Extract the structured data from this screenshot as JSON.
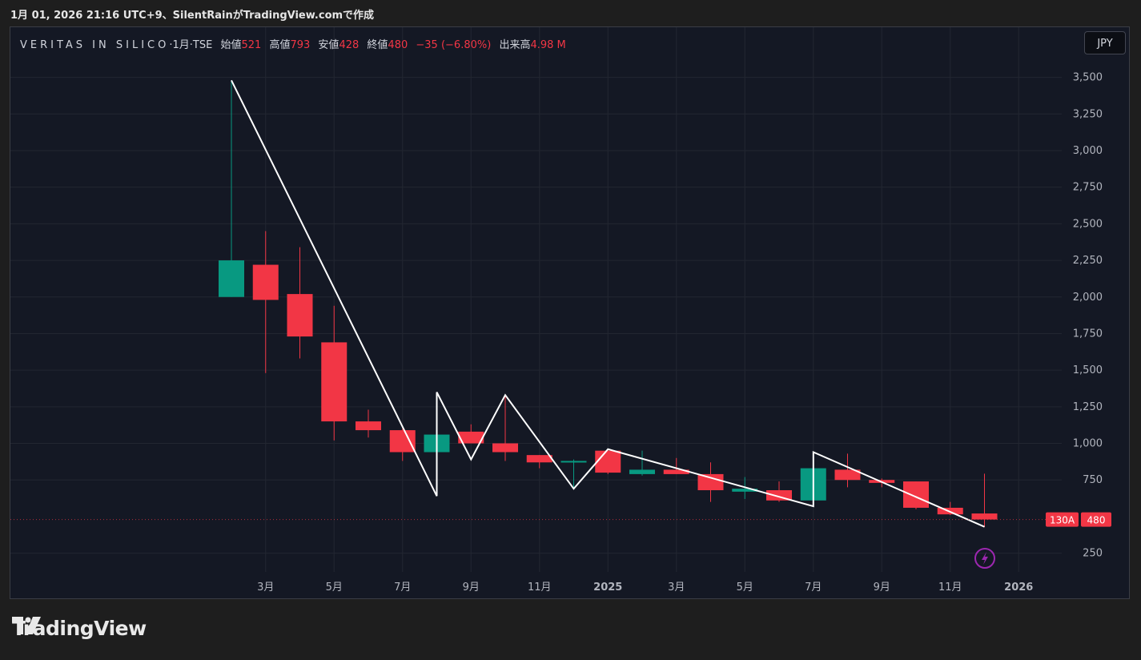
{
  "caption": "1月 01, 2026 21:16 UTC+9、SilentRainがTradingView.comで作成",
  "legend": {
    "symbol": "VERITAS IN SILICO",
    "interval": "·1月·TSE",
    "open_label": "始値",
    "open": "521",
    "high_label": "高値",
    "high": "793",
    "low_label": "安値",
    "low": "428",
    "close_label": "終値",
    "close": "480",
    "change": "−35 (−6.80%)",
    "volume_label": "出来高",
    "volume": "4.98 M"
  },
  "currency_button": "JPY",
  "price_badge": {
    "ticker": "130A",
    "price": "480"
  },
  "brand": "TradingView",
  "icons": {
    "logo": "tradingview-logo-icon",
    "lightning": "lightning-icon"
  },
  "colors": {
    "up": "#089981",
    "down": "#f23645",
    "line": "#ffffff",
    "background": "#141824"
  },
  "chart_data": {
    "type": "candlestick",
    "y_ticks": [
      "250",
      "750",
      "1,000",
      "1,250",
      "1,500",
      "1,750",
      "2,000",
      "2,250",
      "2,500",
      "2,750",
      "3,000",
      "3,250",
      "3,500"
    ],
    "y_tick_values": [
      250,
      750,
      1000,
      1250,
      1500,
      1750,
      2000,
      2250,
      2500,
      2750,
      3000,
      3250,
      3500
    ],
    "ylim": [
      50,
      3650
    ],
    "x_ticks": [
      {
        "label": "3月",
        "idx": 1,
        "bold": false
      },
      {
        "label": "5月",
        "idx": 3,
        "bold": false
      },
      {
        "label": "7月",
        "idx": 5,
        "bold": false
      },
      {
        "label": "9月",
        "idx": 7,
        "bold": false
      },
      {
        "label": "11月",
        "idx": 9,
        "bold": false
      },
      {
        "label": "2025",
        "idx": 11,
        "bold": true
      },
      {
        "label": "3月",
        "idx": 13,
        "bold": false
      },
      {
        "label": "5月",
        "idx": 15,
        "bold": false
      },
      {
        "label": "7月",
        "idx": 17,
        "bold": false
      },
      {
        "label": "9月",
        "idx": 19,
        "bold": false
      },
      {
        "label": "11月",
        "idx": 21,
        "bold": false
      },
      {
        "label": "2026",
        "idx": 23,
        "bold": true
      }
    ],
    "candles": [
      {
        "month": "2024-02",
        "o": 2000,
        "h": 3480,
        "l": 2000,
        "c": 2250
      },
      {
        "month": "2024-03",
        "o": 2220,
        "h": 2450,
        "l": 1480,
        "c": 1980
      },
      {
        "month": "2024-04",
        "o": 2020,
        "h": 2340,
        "l": 1580,
        "c": 1730
      },
      {
        "month": "2024-05",
        "o": 1690,
        "h": 1940,
        "l": 1020,
        "c": 1150
      },
      {
        "month": "2024-06",
        "o": 1150,
        "h": 1230,
        "l": 1040,
        "c": 1090
      },
      {
        "month": "2024-07",
        "o": 1090,
        "h": 1100,
        "l": 880,
        "c": 940
      },
      {
        "month": "2024-08",
        "o": 940,
        "h": 1060,
        "l": 940,
        "c": 1060
      },
      {
        "month": "2024-09",
        "o": 1080,
        "h": 1130,
        "l": 1000,
        "c": 1000
      },
      {
        "month": "2024-10",
        "o": 1000,
        "h": 1330,
        "l": 880,
        "c": 940
      },
      {
        "month": "2024-11",
        "o": 920,
        "h": 920,
        "l": 830,
        "c": 870
      },
      {
        "month": "2024-12",
        "o": 880,
        "h": 890,
        "l": 690,
        "c": 880
      },
      {
        "month": "2025-01",
        "o": 950,
        "h": 960,
        "l": 790,
        "c": 800
      },
      {
        "month": "2025-02",
        "o": 790,
        "h": 950,
        "l": 780,
        "c": 820
      },
      {
        "month": "2025-03",
        "o": 820,
        "h": 900,
        "l": 790,
        "c": 790
      },
      {
        "month": "2025-04",
        "o": 790,
        "h": 870,
        "l": 600,
        "c": 680
      },
      {
        "month": "2025-05",
        "o": 670,
        "h": 770,
        "l": 620,
        "c": 690
      },
      {
        "month": "2025-06",
        "o": 680,
        "h": 740,
        "l": 600,
        "c": 610
      },
      {
        "month": "2025-07",
        "o": 610,
        "h": 830,
        "l": 610,
        "c": 830
      },
      {
        "month": "2025-08",
        "o": 820,
        "h": 930,
        "l": 700,
        "c": 750
      },
      {
        "month": "2025-09",
        "o": 750,
        "h": 760,
        "l": 700,
        "c": 730
      },
      {
        "month": "2025-10",
        "o": 740,
        "h": 740,
        "l": 550,
        "c": 560
      },
      {
        "month": "2025-11",
        "o": 560,
        "h": 600,
        "l": 510,
        "c": 515
      },
      {
        "month": "2025-12",
        "o": 521,
        "h": 793,
        "l": 428,
        "c": 480
      }
    ],
    "zigzag": [
      {
        "idx": 0,
        "v": 3480
      },
      {
        "idx": 6,
        "v": 640
      },
      {
        "idx": 6,
        "v": 1350
      },
      {
        "idx": 7,
        "v": 890
      },
      {
        "idx": 8,
        "v": 1330
      },
      {
        "idx": 10,
        "v": 690
      },
      {
        "idx": 11,
        "v": 960
      },
      {
        "idx": 17,
        "v": 570
      },
      {
        "idx": 17,
        "v": 940
      },
      {
        "idx": 22,
        "v": 430
      }
    ]
  }
}
